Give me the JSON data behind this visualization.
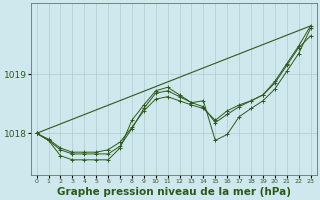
{
  "bg_color": "#cfe8ed",
  "grid_color": "#b0cccc",
  "line_color": "#2d5a1b",
  "xlabel": "Graphe pression niveau de la mer (hPa)",
  "xlabel_fontsize": 7.5,
  "yticks": [
    1018,
    1019
  ],
  "ylim": [
    1017.3,
    1020.2
  ],
  "xlim": [
    -0.5,
    23.5
  ],
  "xticks": [
    0,
    1,
    2,
    3,
    4,
    5,
    6,
    7,
    8,
    9,
    10,
    11,
    12,
    13,
    14,
    15,
    16,
    17,
    18,
    19,
    20,
    21,
    22,
    23
  ],
  "series": [
    {
      "x": [
        0,
        1,
        2,
        3,
        4,
        5,
        6,
        7,
        8,
        9,
        10,
        11,
        12,
        13,
        14,
        15,
        16,
        17,
        18,
        19,
        20,
        21,
        22,
        23
      ],
      "y": [
        1018.0,
        1017.9,
        1017.75,
        1017.68,
        1017.68,
        1017.68,
        1017.72,
        1017.85,
        1018.1,
        1018.38,
        1018.58,
        1018.62,
        1018.55,
        1018.48,
        1018.42,
        1018.22,
        1018.38,
        1018.48,
        1018.55,
        1018.65,
        1018.85,
        1019.15,
        1019.45,
        1019.65
      ]
    },
    {
      "x": [
        0,
        1,
        2,
        3,
        4,
        5,
        6,
        7,
        8,
        9,
        10,
        11,
        12,
        13,
        14,
        15,
        16,
        17,
        18,
        19,
        20,
        21,
        22,
        23
      ],
      "y": [
        1018.0,
        1017.88,
        1017.72,
        1017.65,
        1017.65,
        1017.65,
        1017.65,
        1017.78,
        1018.08,
        1018.42,
        1018.68,
        1018.72,
        1018.62,
        1018.52,
        1018.55,
        1017.88,
        1017.98,
        1018.28,
        1018.42,
        1018.55,
        1018.75,
        1019.05,
        1019.35,
        1019.78
      ]
    },
    {
      "x": [
        0,
        1,
        2,
        3,
        4,
        5,
        6,
        7,
        8,
        9,
        10,
        11,
        12,
        13,
        14,
        15,
        16,
        17,
        18,
        19,
        20,
        21,
        22,
        23
      ],
      "y": [
        1018.0,
        1017.88,
        1017.62,
        1017.55,
        1017.55,
        1017.55,
        1017.55,
        1017.75,
        1018.22,
        1018.48,
        1018.72,
        1018.78,
        1018.65,
        1018.52,
        1018.45,
        1018.18,
        1018.32,
        1018.45,
        1018.55,
        1018.65,
        1018.88,
        1019.18,
        1019.48,
        1019.82
      ]
    },
    {
      "x": [
        0,
        23
      ],
      "y": [
        1018.0,
        1019.82
      ]
    }
  ]
}
